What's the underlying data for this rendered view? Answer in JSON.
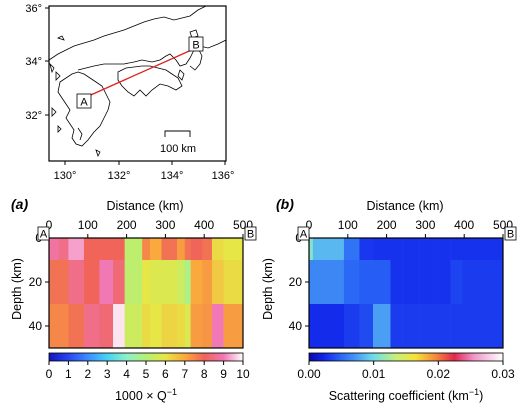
{
  "map": {
    "lat_ticks": [
      "36°",
      "34°",
      "32°"
    ],
    "lon_ticks": [
      "130°",
      "132°",
      "134°",
      "136°"
    ],
    "scale_label": "100 km",
    "point_a": "A",
    "point_b": "B",
    "profile_color": "#e0201e"
  },
  "panel_a": {
    "tag": "(a)",
    "xlabel": "Distance (km)",
    "ylabel": "Depth (km)",
    "end_a": "A",
    "end_b": "B",
    "colorbar_label": "1000 × Q",
    "colorbar_label_sup": "−1",
    "colorbar_ticks": [
      "0",
      "1",
      "2",
      "3",
      "4",
      "5",
      "6",
      "7",
      "8",
      "9",
      "10"
    ]
  },
  "panel_b": {
    "tag": "(b)",
    "xlabel": "Distance (km)",
    "ylabel": "Depth (km)",
    "end_a": "A",
    "end_b": "B",
    "colorbar_label": "Scattering coefficient (km",
    "colorbar_label_sup": "−1",
    "colorbar_label_end": ")",
    "colorbar_ticks": [
      "0.00",
      "0.01",
      "0.02",
      "0.03"
    ]
  },
  "chart_data": [
    {
      "type": "heatmap",
      "title": "(a)",
      "xlabel": "Distance (km)",
      "ylabel": "Depth (km)",
      "xlim": [
        0,
        500
      ],
      "ylim": [
        0,
        50
      ],
      "xticks": [
        "0",
        "100",
        "200",
        "300",
        "400",
        "500"
      ],
      "yticks": [
        "0",
        "20",
        "40"
      ],
      "x_edges": [
        0,
        25,
        50,
        90,
        130,
        165,
        195,
        240,
        260,
        290,
        330,
        350,
        365,
        395,
        420,
        450,
        500
      ],
      "depth_edges": [
        0,
        10,
        30,
        50
      ],
      "values": [
        [
          8.8,
          8.5,
          9.3,
          8.0,
          8.0,
          8.0,
          5.2,
          7.5,
          7.0,
          7.8,
          7.2,
          7.8,
          8.0,
          7.8,
          6.2,
          6.0
        ],
        [
          7.8,
          7.8,
          8.5,
          8.0,
          9.0,
          8.3,
          5.2,
          6.0,
          5.8,
          5.8,
          5.5,
          4.8,
          7.0,
          7.2,
          6.5,
          6.2
        ],
        [
          7.5,
          7.5,
          7.8,
          8.5,
          8.3,
          9.8,
          5.5,
          6.2,
          6.0,
          6.3,
          6.2,
          5.8,
          7.2,
          7.3,
          9.0,
          7.2
        ]
      ],
      "colorbar": {
        "label": "1000 × Q−1",
        "range": [
          0,
          10
        ],
        "ticks": [
          0,
          1,
          2,
          3,
          4,
          5,
          6,
          7,
          8,
          9,
          10
        ]
      }
    },
    {
      "type": "heatmap",
      "title": "(b)",
      "xlabel": "Distance (km)",
      "ylabel": "Depth (km)",
      "xlim": [
        0,
        500
      ],
      "ylim": [
        0,
        50
      ],
      "xticks": [
        "0",
        "100",
        "200",
        "300",
        "400",
        "500"
      ],
      "yticks": [
        "0",
        "20",
        "40"
      ],
      "x_edges": [
        0,
        10,
        50,
        90,
        130,
        165,
        210,
        240,
        285,
        330,
        365,
        395,
        440,
        470,
        500
      ],
      "depth_edges": [
        0,
        10,
        30,
        50
      ],
      "values": [
        [
          0.011,
          0.0085,
          0.0085,
          0.0055,
          0.003,
          0.0028,
          0.0028,
          0.0028,
          0.0028,
          0.0028,
          0.0028,
          0.0028,
          0.0028,
          0.0028
        ],
        [
          0.0065,
          0.0065,
          0.0065,
          0.005,
          0.0045,
          0.0045,
          0.0028,
          0.0028,
          0.0028,
          0.0028,
          0.0035,
          0.0032,
          0.0032,
          0.0032
        ],
        [
          0.0025,
          0.0025,
          0.0025,
          0.0032,
          0.0038,
          0.0075,
          0.0032,
          0.0032,
          0.0032,
          0.0032,
          0.0032,
          0.0032,
          0.0032,
          0.0032
        ]
      ],
      "colorbar": {
        "label": "Scattering coefficient (km−1)",
        "range": [
          0.0,
          0.03
        ],
        "ticks": [
          0.0,
          0.01,
          0.02,
          0.03
        ]
      }
    }
  ]
}
